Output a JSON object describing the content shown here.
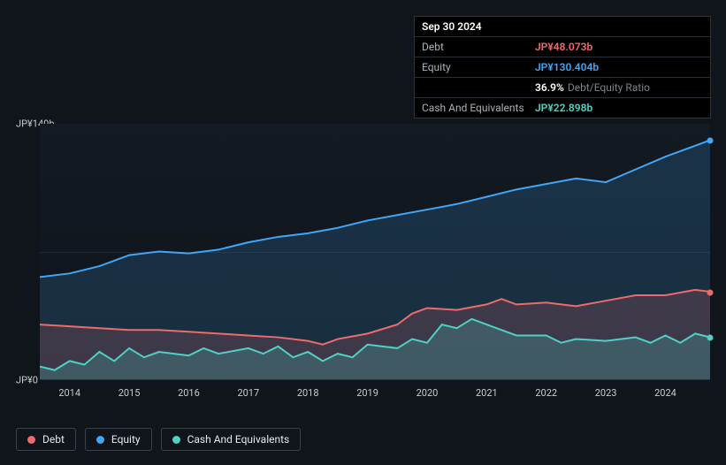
{
  "tooltip": {
    "date": "Sep 30 2024",
    "rows": [
      {
        "label": "Debt",
        "value": "JP¥48.073b",
        "cls": "debt"
      },
      {
        "label": "Equity",
        "value": "JP¥130.404b",
        "cls": "equity"
      },
      {
        "label": "",
        "value": "36.9%",
        "cls": "ratio",
        "suffix": "Debt/Equity Ratio"
      },
      {
        "label": "Cash And Equivalents",
        "value": "JP¥22.898b",
        "cls": "cash"
      }
    ]
  },
  "chart": {
    "type": "area-line",
    "y_axis": {
      "min": 0,
      "max": 140,
      "ticks": [
        0,
        70,
        140
      ],
      "labels": [
        "JP¥0",
        "",
        "JP¥140b"
      ]
    },
    "x_axis": {
      "ticks": [
        2014,
        2015,
        2016,
        2017,
        2018,
        2019,
        2020,
        2021,
        2022,
        2023,
        2024
      ]
    },
    "x_range": [
      2013.5,
      2024.75
    ],
    "colors": {
      "debt": "#ed6b6b",
      "debt_fill": "rgba(237,107,107,0.18)",
      "equity": "#42a5f5",
      "equity_fill": "rgba(66,165,245,0.18)",
      "cash": "#4fd1c5",
      "cash_fill": "rgba(79,209,197,0.22)",
      "grid": "#1e2631",
      "bg_top": "#131a22",
      "bg_bot": "#0e141a"
    },
    "line_width": 2,
    "series": {
      "equity": {
        "label": "Equity",
        "points": [
          [
            2013.5,
            56
          ],
          [
            2014,
            58
          ],
          [
            2014.5,
            62
          ],
          [
            2015,
            68
          ],
          [
            2015.5,
            70
          ],
          [
            2016,
            69
          ],
          [
            2016.5,
            71
          ],
          [
            2017,
            75
          ],
          [
            2017.5,
            78
          ],
          [
            2018,
            80
          ],
          [
            2018.5,
            83
          ],
          [
            2019,
            87
          ],
          [
            2019.5,
            90
          ],
          [
            2020,
            93
          ],
          [
            2020.5,
            96
          ],
          [
            2021,
            100
          ],
          [
            2021.5,
            104
          ],
          [
            2022,
            107
          ],
          [
            2022.5,
            110
          ],
          [
            2023,
            108
          ],
          [
            2023.5,
            115
          ],
          [
            2024,
            122
          ],
          [
            2024.5,
            128
          ],
          [
            2024.75,
            131
          ]
        ]
      },
      "debt": {
        "label": "Debt",
        "points": [
          [
            2013.5,
            30
          ],
          [
            2014,
            29
          ],
          [
            2014.5,
            28
          ],
          [
            2015,
            27
          ],
          [
            2015.5,
            27
          ],
          [
            2016,
            26
          ],
          [
            2016.5,
            25
          ],
          [
            2017,
            24
          ],
          [
            2017.5,
            23
          ],
          [
            2018,
            21
          ],
          [
            2018.25,
            19
          ],
          [
            2018.5,
            22
          ],
          [
            2019,
            25
          ],
          [
            2019.5,
            30
          ],
          [
            2019.75,
            36
          ],
          [
            2020,
            39
          ],
          [
            2020.5,
            38
          ],
          [
            2021,
            41
          ],
          [
            2021.25,
            44
          ],
          [
            2021.5,
            41
          ],
          [
            2022,
            42
          ],
          [
            2022.5,
            40
          ],
          [
            2023,
            43
          ],
          [
            2023.5,
            46
          ],
          [
            2024,
            46
          ],
          [
            2024.5,
            49
          ],
          [
            2024.75,
            48
          ]
        ]
      },
      "cash": {
        "label": "Cash And Equivalents",
        "points": [
          [
            2013.5,
            7
          ],
          [
            2013.75,
            5
          ],
          [
            2014,
            10
          ],
          [
            2014.25,
            8
          ],
          [
            2014.5,
            15
          ],
          [
            2014.75,
            10
          ],
          [
            2015,
            17
          ],
          [
            2015.25,
            12
          ],
          [
            2015.5,
            15
          ],
          [
            2016,
            13
          ],
          [
            2016.25,
            17
          ],
          [
            2016.5,
            14
          ],
          [
            2017,
            17
          ],
          [
            2017.25,
            14
          ],
          [
            2017.5,
            18
          ],
          [
            2017.75,
            12
          ],
          [
            2018,
            15
          ],
          [
            2018.25,
            10
          ],
          [
            2018.5,
            14
          ],
          [
            2018.75,
            12
          ],
          [
            2019,
            19
          ],
          [
            2019.5,
            17
          ],
          [
            2019.75,
            22
          ],
          [
            2020,
            20
          ],
          [
            2020.25,
            30
          ],
          [
            2020.5,
            28
          ],
          [
            2020.75,
            33
          ],
          [
            2021,
            30
          ],
          [
            2021.25,
            27
          ],
          [
            2021.5,
            24
          ],
          [
            2022,
            24
          ],
          [
            2022.25,
            20
          ],
          [
            2022.5,
            22
          ],
          [
            2023,
            21
          ],
          [
            2023.5,
            23
          ],
          [
            2023.75,
            20
          ],
          [
            2024,
            24
          ],
          [
            2024.25,
            20
          ],
          [
            2024.5,
            25
          ],
          [
            2024.75,
            23
          ]
        ]
      }
    }
  },
  "legend": [
    {
      "key": "debt",
      "label": "Debt",
      "color": "#ed6b6b"
    },
    {
      "key": "equity",
      "label": "Equity",
      "color": "#42a5f5"
    },
    {
      "key": "cash",
      "label": "Cash And Equivalents",
      "color": "#4fd1c5"
    }
  ]
}
